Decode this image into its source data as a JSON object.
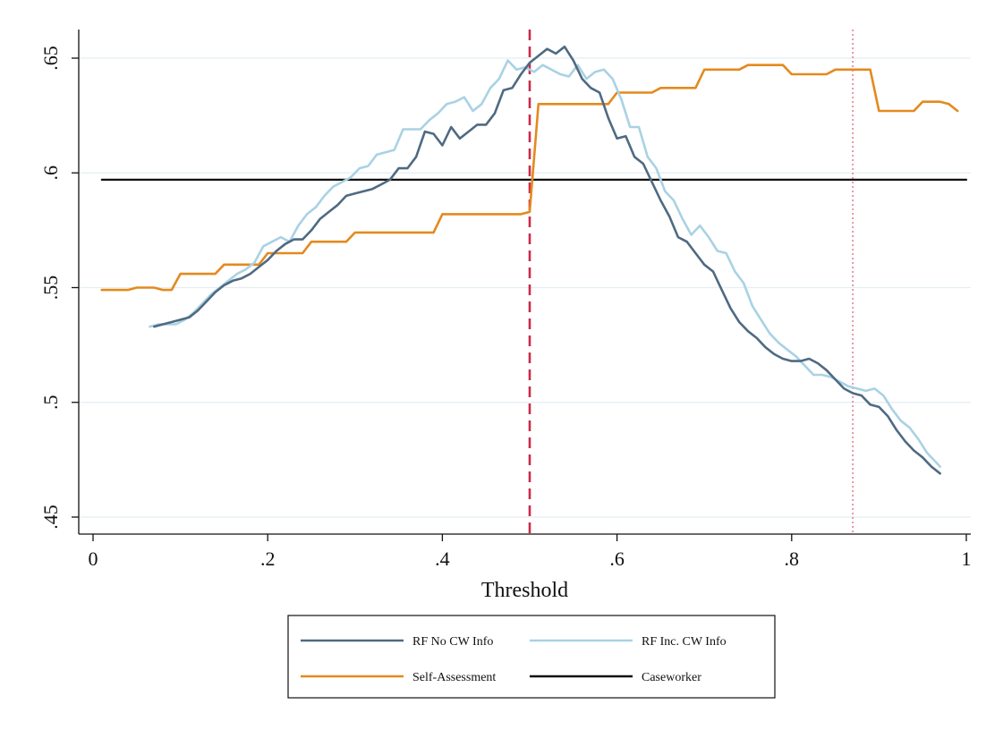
{
  "chart_data": {
    "type": "line",
    "title": "",
    "xlabel": "Threshold",
    "ylabel": "",
    "xlim": [
      0,
      1
    ],
    "ylim": [
      0.45,
      0.655
    ],
    "xticks": [
      {
        "value": 0,
        "label": "0"
      },
      {
        "value": 0.2,
        "label": ".2"
      },
      {
        "value": 0.4,
        "label": ".4"
      },
      {
        "value": 0.6,
        "label": ".6"
      },
      {
        "value": 0.8,
        "label": ".8"
      },
      {
        "value": 1,
        "label": "1"
      }
    ],
    "yticks": [
      {
        "value": 0.45,
        "label": ".45"
      },
      {
        "value": 0.5,
        "label": ".5"
      },
      {
        "value": 0.55,
        "label": ".55"
      },
      {
        "value": 0.6,
        "label": ".6"
      },
      {
        "value": 0.65,
        "label": ".65"
      }
    ],
    "grid": true,
    "legend_position": "bottom",
    "reference_lines": [
      {
        "axis": "x",
        "value": 0.5,
        "style": "dashed",
        "color": "#cc2b4a"
      },
      {
        "axis": "x",
        "value": 0.87,
        "style": "dotted",
        "color": "#e37a8a"
      }
    ],
    "series": [
      {
        "name": "RF No CW Info",
        "color": "#4f6a82",
        "x": [
          0.07,
          0.08,
          0.09,
          0.1,
          0.11,
          0.12,
          0.13,
          0.14,
          0.15,
          0.16,
          0.17,
          0.18,
          0.19,
          0.2,
          0.21,
          0.22,
          0.23,
          0.24,
          0.25,
          0.26,
          0.27,
          0.28,
          0.29,
          0.3,
          0.31,
          0.32,
          0.33,
          0.34,
          0.35,
          0.36,
          0.37,
          0.38,
          0.39,
          0.4,
          0.41,
          0.42,
          0.43,
          0.44,
          0.45,
          0.46,
          0.47,
          0.48,
          0.49,
          0.5,
          0.51,
          0.52,
          0.53,
          0.54,
          0.55,
          0.56,
          0.57,
          0.58,
          0.59,
          0.6,
          0.61,
          0.62,
          0.63,
          0.64,
          0.65,
          0.66,
          0.67,
          0.68,
          0.69,
          0.7,
          0.71,
          0.72,
          0.73,
          0.74,
          0.75,
          0.76,
          0.77,
          0.78,
          0.79,
          0.8,
          0.81,
          0.82,
          0.83,
          0.84,
          0.85,
          0.86,
          0.87,
          0.88,
          0.89,
          0.9,
          0.91,
          0.92,
          0.93,
          0.94,
          0.95,
          0.96,
          0.97
        ],
        "y": [
          0.533,
          0.534,
          0.535,
          0.536,
          0.537,
          0.54,
          0.544,
          0.548,
          0.551,
          0.553,
          0.554,
          0.556,
          0.559,
          0.562,
          0.566,
          0.569,
          0.571,
          0.571,
          0.575,
          0.58,
          0.583,
          0.586,
          0.59,
          0.591,
          0.592,
          0.593,
          0.595,
          0.597,
          0.602,
          0.602,
          0.607,
          0.618,
          0.617,
          0.612,
          0.62,
          0.615,
          0.618,
          0.621,
          0.621,
          0.626,
          0.636,
          0.637,
          0.643,
          0.648,
          0.651,
          0.654,
          0.652,
          0.655,
          0.649,
          0.641,
          0.637,
          0.635,
          0.624,
          0.615,
          0.616,
          0.607,
          0.604,
          0.596,
          0.588,
          0.581,
          0.572,
          0.57,
          0.565,
          0.56,
          0.557,
          0.549,
          0.541,
          0.535,
          0.531,
          0.528,
          0.524,
          0.521,
          0.519,
          0.518,
          0.518,
          0.519,
          0.517,
          0.514,
          0.51,
          0.506,
          0.504,
          0.503,
          0.499,
          0.498,
          0.494,
          0.488,
          0.483,
          0.479,
          0.476,
          0.472,
          0.469
        ]
      },
      {
        "name": "RF Inc. CW Info",
        "color": "#a9d2e4",
        "x": [
          0.065,
          0.075,
          0.085,
          0.095,
          0.105,
          0.115,
          0.125,
          0.135,
          0.145,
          0.155,
          0.165,
          0.175,
          0.185,
          0.195,
          0.205,
          0.215,
          0.225,
          0.235,
          0.245,
          0.255,
          0.265,
          0.275,
          0.285,
          0.295,
          0.305,
          0.315,
          0.325,
          0.335,
          0.345,
          0.355,
          0.365,
          0.375,
          0.385,
          0.395,
          0.405,
          0.415,
          0.425,
          0.435,
          0.445,
          0.455,
          0.465,
          0.475,
          0.485,
          0.495,
          0.505,
          0.515,
          0.525,
          0.535,
          0.545,
          0.555,
          0.565,
          0.575,
          0.585,
          0.595,
          0.605,
          0.615,
          0.625,
          0.635,
          0.645,
          0.655,
          0.665,
          0.675,
          0.685,
          0.695,
          0.705,
          0.715,
          0.725,
          0.735,
          0.745,
          0.755,
          0.765,
          0.775,
          0.785,
          0.795,
          0.805,
          0.815,
          0.825,
          0.835,
          0.845,
          0.855,
          0.865,
          0.875,
          0.885,
          0.895,
          0.905,
          0.915,
          0.925,
          0.935,
          0.945,
          0.955,
          0.965,
          0.97
        ],
        "y": [
          0.533,
          0.534,
          0.534,
          0.534,
          0.536,
          0.539,
          0.543,
          0.547,
          0.55,
          0.553,
          0.556,
          0.558,
          0.561,
          0.568,
          0.57,
          0.572,
          0.57,
          0.577,
          0.582,
          0.585,
          0.59,
          0.594,
          0.596,
          0.598,
          0.602,
          0.603,
          0.608,
          0.609,
          0.61,
          0.619,
          0.619,
          0.619,
          0.623,
          0.626,
          0.63,
          0.631,
          0.633,
          0.627,
          0.63,
          0.637,
          0.641,
          0.649,
          0.645,
          0.646,
          0.644,
          0.647,
          0.645,
          0.643,
          0.642,
          0.647,
          0.641,
          0.644,
          0.645,
          0.641,
          0.632,
          0.62,
          0.62,
          0.607,
          0.602,
          0.592,
          0.588,
          0.58,
          0.573,
          0.577,
          0.572,
          0.566,
          0.565,
          0.557,
          0.552,
          0.542,
          0.536,
          0.53,
          0.526,
          0.523,
          0.52,
          0.516,
          0.512,
          0.512,
          0.511,
          0.509,
          0.507,
          0.506,
          0.505,
          0.506,
          0.503,
          0.497,
          0.492,
          0.489,
          0.484,
          0.478,
          0.474,
          0.472
        ]
      },
      {
        "name": "Self-Assessment",
        "color": "#e38a1e",
        "x": [
          0.01,
          0.04,
          0.05,
          0.07,
          0.08,
          0.09,
          0.1,
          0.14,
          0.15,
          0.19,
          0.2,
          0.24,
          0.25,
          0.29,
          0.3,
          0.39,
          0.4,
          0.49,
          0.5,
          0.51,
          0.59,
          0.6,
          0.64,
          0.65,
          0.69,
          0.7,
          0.74,
          0.75,
          0.79,
          0.8,
          0.84,
          0.85,
          0.89,
          0.9,
          0.94,
          0.95,
          0.97,
          0.98,
          0.99
        ],
        "y": [
          0.549,
          0.549,
          0.55,
          0.55,
          0.549,
          0.549,
          0.556,
          0.556,
          0.56,
          0.56,
          0.565,
          0.565,
          0.57,
          0.57,
          0.574,
          0.574,
          0.582,
          0.582,
          0.583,
          0.63,
          0.63,
          0.635,
          0.635,
          0.637,
          0.637,
          0.645,
          0.645,
          0.647,
          0.647,
          0.643,
          0.643,
          0.645,
          0.645,
          0.627,
          0.627,
          0.631,
          0.631,
          0.63,
          0.627
        ]
      },
      {
        "name": "Caseworker",
        "color": "#111111",
        "x": [
          0.01,
          1.0
        ],
        "y": [
          0.597,
          0.597
        ]
      }
    ]
  }
}
